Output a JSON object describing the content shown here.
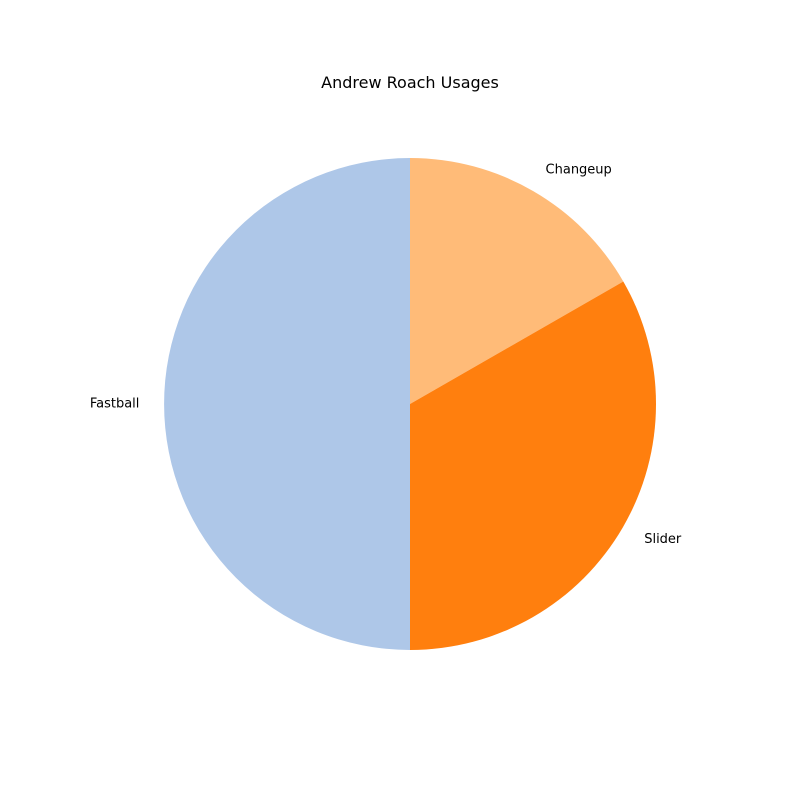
{
  "chart_data": {
    "type": "pie",
    "title": "Andrew Roach Usages",
    "slices": [
      {
        "label": "Changeup",
        "value": 16.7,
        "color": "#ffbb78"
      },
      {
        "label": "Slider",
        "value": 33.3,
        "color": "#ff7f0e"
      },
      {
        "label": "Fastball",
        "value": 50.0,
        "color": "#aec7e8"
      }
    ],
    "start_angle_deg": 90,
    "direction": "clockwise"
  }
}
